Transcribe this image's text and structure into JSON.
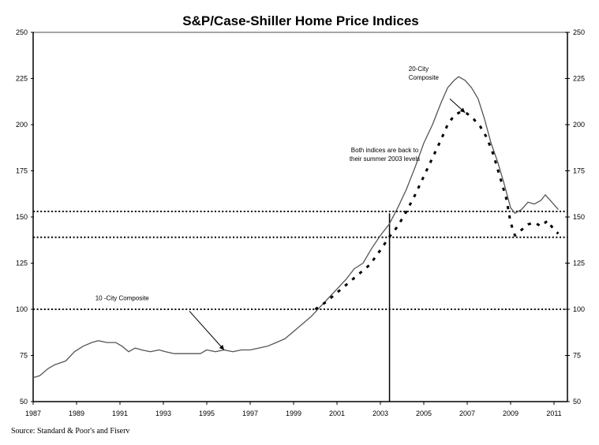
{
  "chart_data": {
    "type": "line",
    "title": "S&P/Case-Shiller Home Price Indices",
    "xlabel": "",
    "ylabel": "",
    "xlim": [
      1987,
      2011.6
    ],
    "ylim": [
      50,
      250
    ],
    "x_ticks": [
      "1987",
      "1989",
      "1991",
      "1993",
      "1995",
      "1997",
      "1999",
      "2001",
      "2003",
      "2005",
      "2007",
      "2009",
      "2011"
    ],
    "x_tick_values": [
      1987,
      1989,
      1991,
      1993,
      1995,
      1997,
      1999,
      2001,
      2003,
      2005,
      2007,
      2009,
      2011
    ],
    "y_ticks": [
      50,
      75,
      100,
      125,
      150,
      175,
      200,
      225,
      250
    ],
    "y_tick_labels_left": [
      "50",
      "75",
      "100",
      "125",
      "150",
      "175",
      "200",
      "225",
      "250"
    ],
    "y_tick_labels_right": [
      "50",
      "75",
      "100",
      "125",
      "150",
      "175",
      "200",
      "225",
      "250"
    ],
    "grid": false,
    "series": [
      {
        "name": "10-City Composite",
        "style": "solid",
        "color": "#555555",
        "x": [
          1987.0,
          1987.3,
          1987.7,
          1988.0,
          1988.5,
          1988.9,
          1989.3,
          1989.7,
          1990.0,
          1990.4,
          1990.8,
          1991.1,
          1991.4,
          1991.7,
          1992.0,
          1992.4,
          1992.8,
          1993.1,
          1993.5,
          1993.9,
          1994.3,
          1994.7,
          1995.0,
          1995.4,
          1995.8,
          1996.2,
          1996.6,
          1997.0,
          1997.4,
          1997.8,
          1998.2,
          1998.6,
          1999.0,
          1999.4,
          1999.8,
          2000.2,
          2000.6,
          2001.0,
          2001.4,
          2001.8,
          2002.2,
          2002.6,
          2003.0,
          2003.4,
          2003.8,
          2004.2,
          2004.6,
          2005.0,
          2005.4,
          2005.8,
          2006.1,
          2006.4,
          2006.6,
          2006.9,
          2007.2,
          2007.5,
          2007.8,
          2008.1,
          2008.4,
          2008.7,
          2009.0,
          2009.2,
          2009.5,
          2009.8,
          2010.1,
          2010.4,
          2010.6,
          2010.9,
          2011.2
        ],
        "values": [
          63,
          64,
          68,
          70,
          72,
          77,
          80,
          82,
          83,
          82,
          82,
          80,
          77,
          79,
          78,
          77,
          78,
          77,
          76,
          76,
          76,
          76,
          78,
          77,
          78,
          77,
          78,
          78,
          79,
          80,
          82,
          84,
          88,
          92,
          96,
          101,
          106,
          111,
          116,
          122,
          125,
          133,
          140,
          146,
          155,
          165,
          177,
          190,
          200,
          212,
          220,
          224,
          226,
          224,
          220,
          214,
          203,
          190,
          180,
          168,
          155,
          152,
          154,
          158,
          157,
          159,
          162,
          158,
          154
        ]
      },
      {
        "name": "20-City Composite",
        "style": "dashed",
        "color": "#000000",
        "x": [
          2000.0,
          2000.5,
          2001.0,
          2001.5,
          2002.0,
          2002.5,
          2003.0,
          2003.4,
          2003.8,
          2004.2,
          2004.6,
          2005.0,
          2005.4,
          2005.8,
          2006.1,
          2006.4,
          2006.7,
          2007.0,
          2007.3,
          2007.6,
          2007.9,
          2008.2,
          2008.5,
          2008.8,
          2009.0,
          2009.2,
          2009.5,
          2009.8,
          2010.1,
          2010.4,
          2010.7,
          2011.0,
          2011.2
        ],
        "values": [
          100,
          104,
          109,
          114,
          119,
          124,
          132,
          139,
          145,
          153,
          162,
          172,
          182,
          192,
          200,
          205,
          207,
          206,
          203,
          199,
          193,
          184,
          172,
          160,
          147,
          140,
          143,
          146,
          147,
          145,
          148,
          143,
          141
        ]
      }
    ],
    "reference_lines": [
      {
        "orientation": "horizontal",
        "style": "dotted",
        "value": 153
      },
      {
        "orientation": "horizontal",
        "style": "dotted",
        "value": 139
      },
      {
        "orientation": "horizontal",
        "style": "dotted",
        "value": 100
      },
      {
        "orientation": "vertical",
        "style": "solid",
        "value": 2003.42,
        "ymax": 152
      }
    ],
    "annotations": [
      {
        "text_lines": [
          "20-City",
          "Composite"
        ],
        "arrow_from": [
          2006.2,
          214
        ],
        "arrow_to": [
          2006.9,
          206.5
        ]
      },
      {
        "text_lines": [
          "Both indices are back to",
          "their summer 2003 levels"
        ],
        "arrow_from": null,
        "arrow_to": null
      },
      {
        "text_lines": [
          "10 -City Composite"
        ],
        "arrow_from": [
          1994.2,
          99
        ],
        "arrow_to": [
          1995.8,
          78
        ]
      }
    ],
    "legend": "none"
  },
  "footer": {
    "source": "Source: Standard & Poor's and Fiserv"
  }
}
